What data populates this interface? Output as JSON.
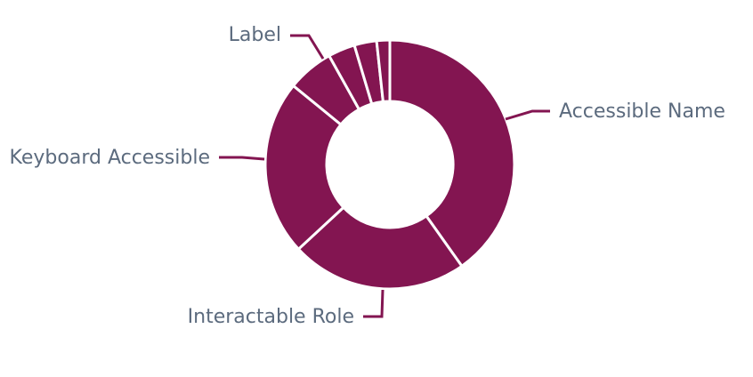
{
  "chart_data": {
    "type": "donut",
    "title": "",
    "slices": [
      {
        "label": "Accessible Name",
        "value": 40.2
      },
      {
        "label": "Interactable Role",
        "value": 22.9
      },
      {
        "label": "Keyboard Accessible",
        "value": 22.8
      },
      {
        "label": "Label",
        "value": 6.0
      },
      {
        "label": "",
        "value": 3.5
      },
      {
        "label": "",
        "value": 2.9
      },
      {
        "label": "",
        "value": 1.7
      }
    ],
    "colors": {
      "slice": "#831551",
      "separator": "#ffffff",
      "label": "#5c6b7e",
      "connector": "#831551"
    },
    "legend": "none"
  }
}
